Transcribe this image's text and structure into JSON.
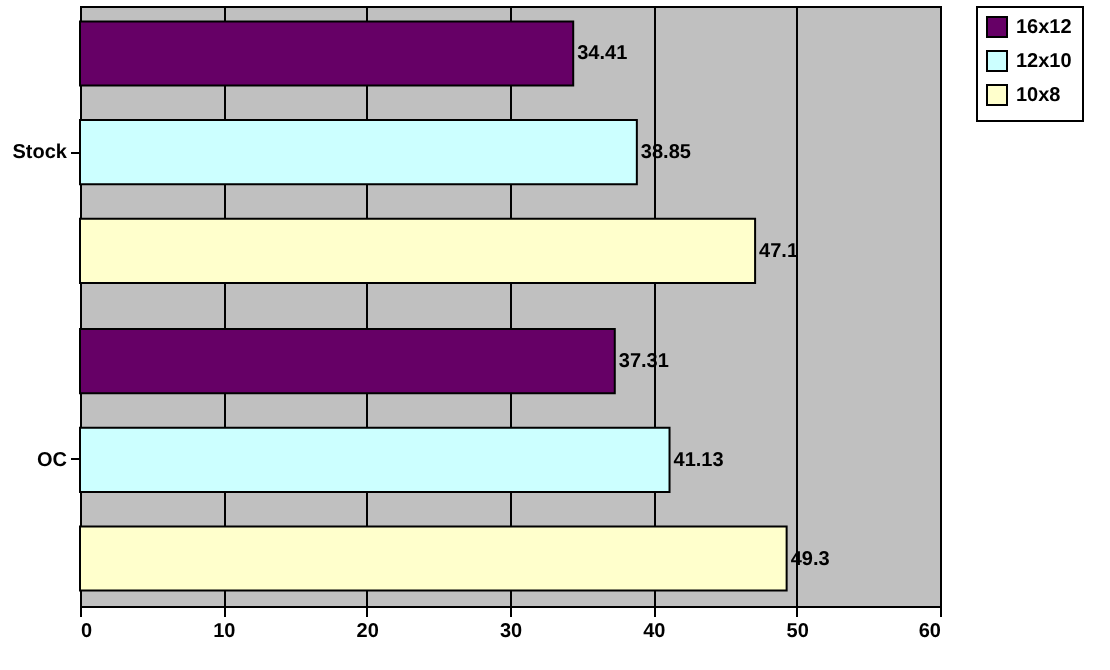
{
  "chart_data": {
    "type": "bar",
    "orientation": "horizontal",
    "categories": [
      "Stock",
      "OC"
    ],
    "series": [
      {
        "name": "16x12",
        "color": "#660066",
        "values": [
          34.41,
          37.31
        ]
      },
      {
        "name": "12x10",
        "color": "#ccffff",
        "values": [
          38.85,
          41.13
        ]
      },
      {
        "name": "10x8",
        "color": "#ffffcc",
        "values": [
          47.1,
          49.3
        ]
      }
    ],
    "xlim": [
      0,
      60
    ],
    "xticks": [
      0,
      10,
      20,
      30,
      40,
      50,
      60
    ],
    "grid": "x",
    "legend": "right",
    "data_labels": true
  }
}
